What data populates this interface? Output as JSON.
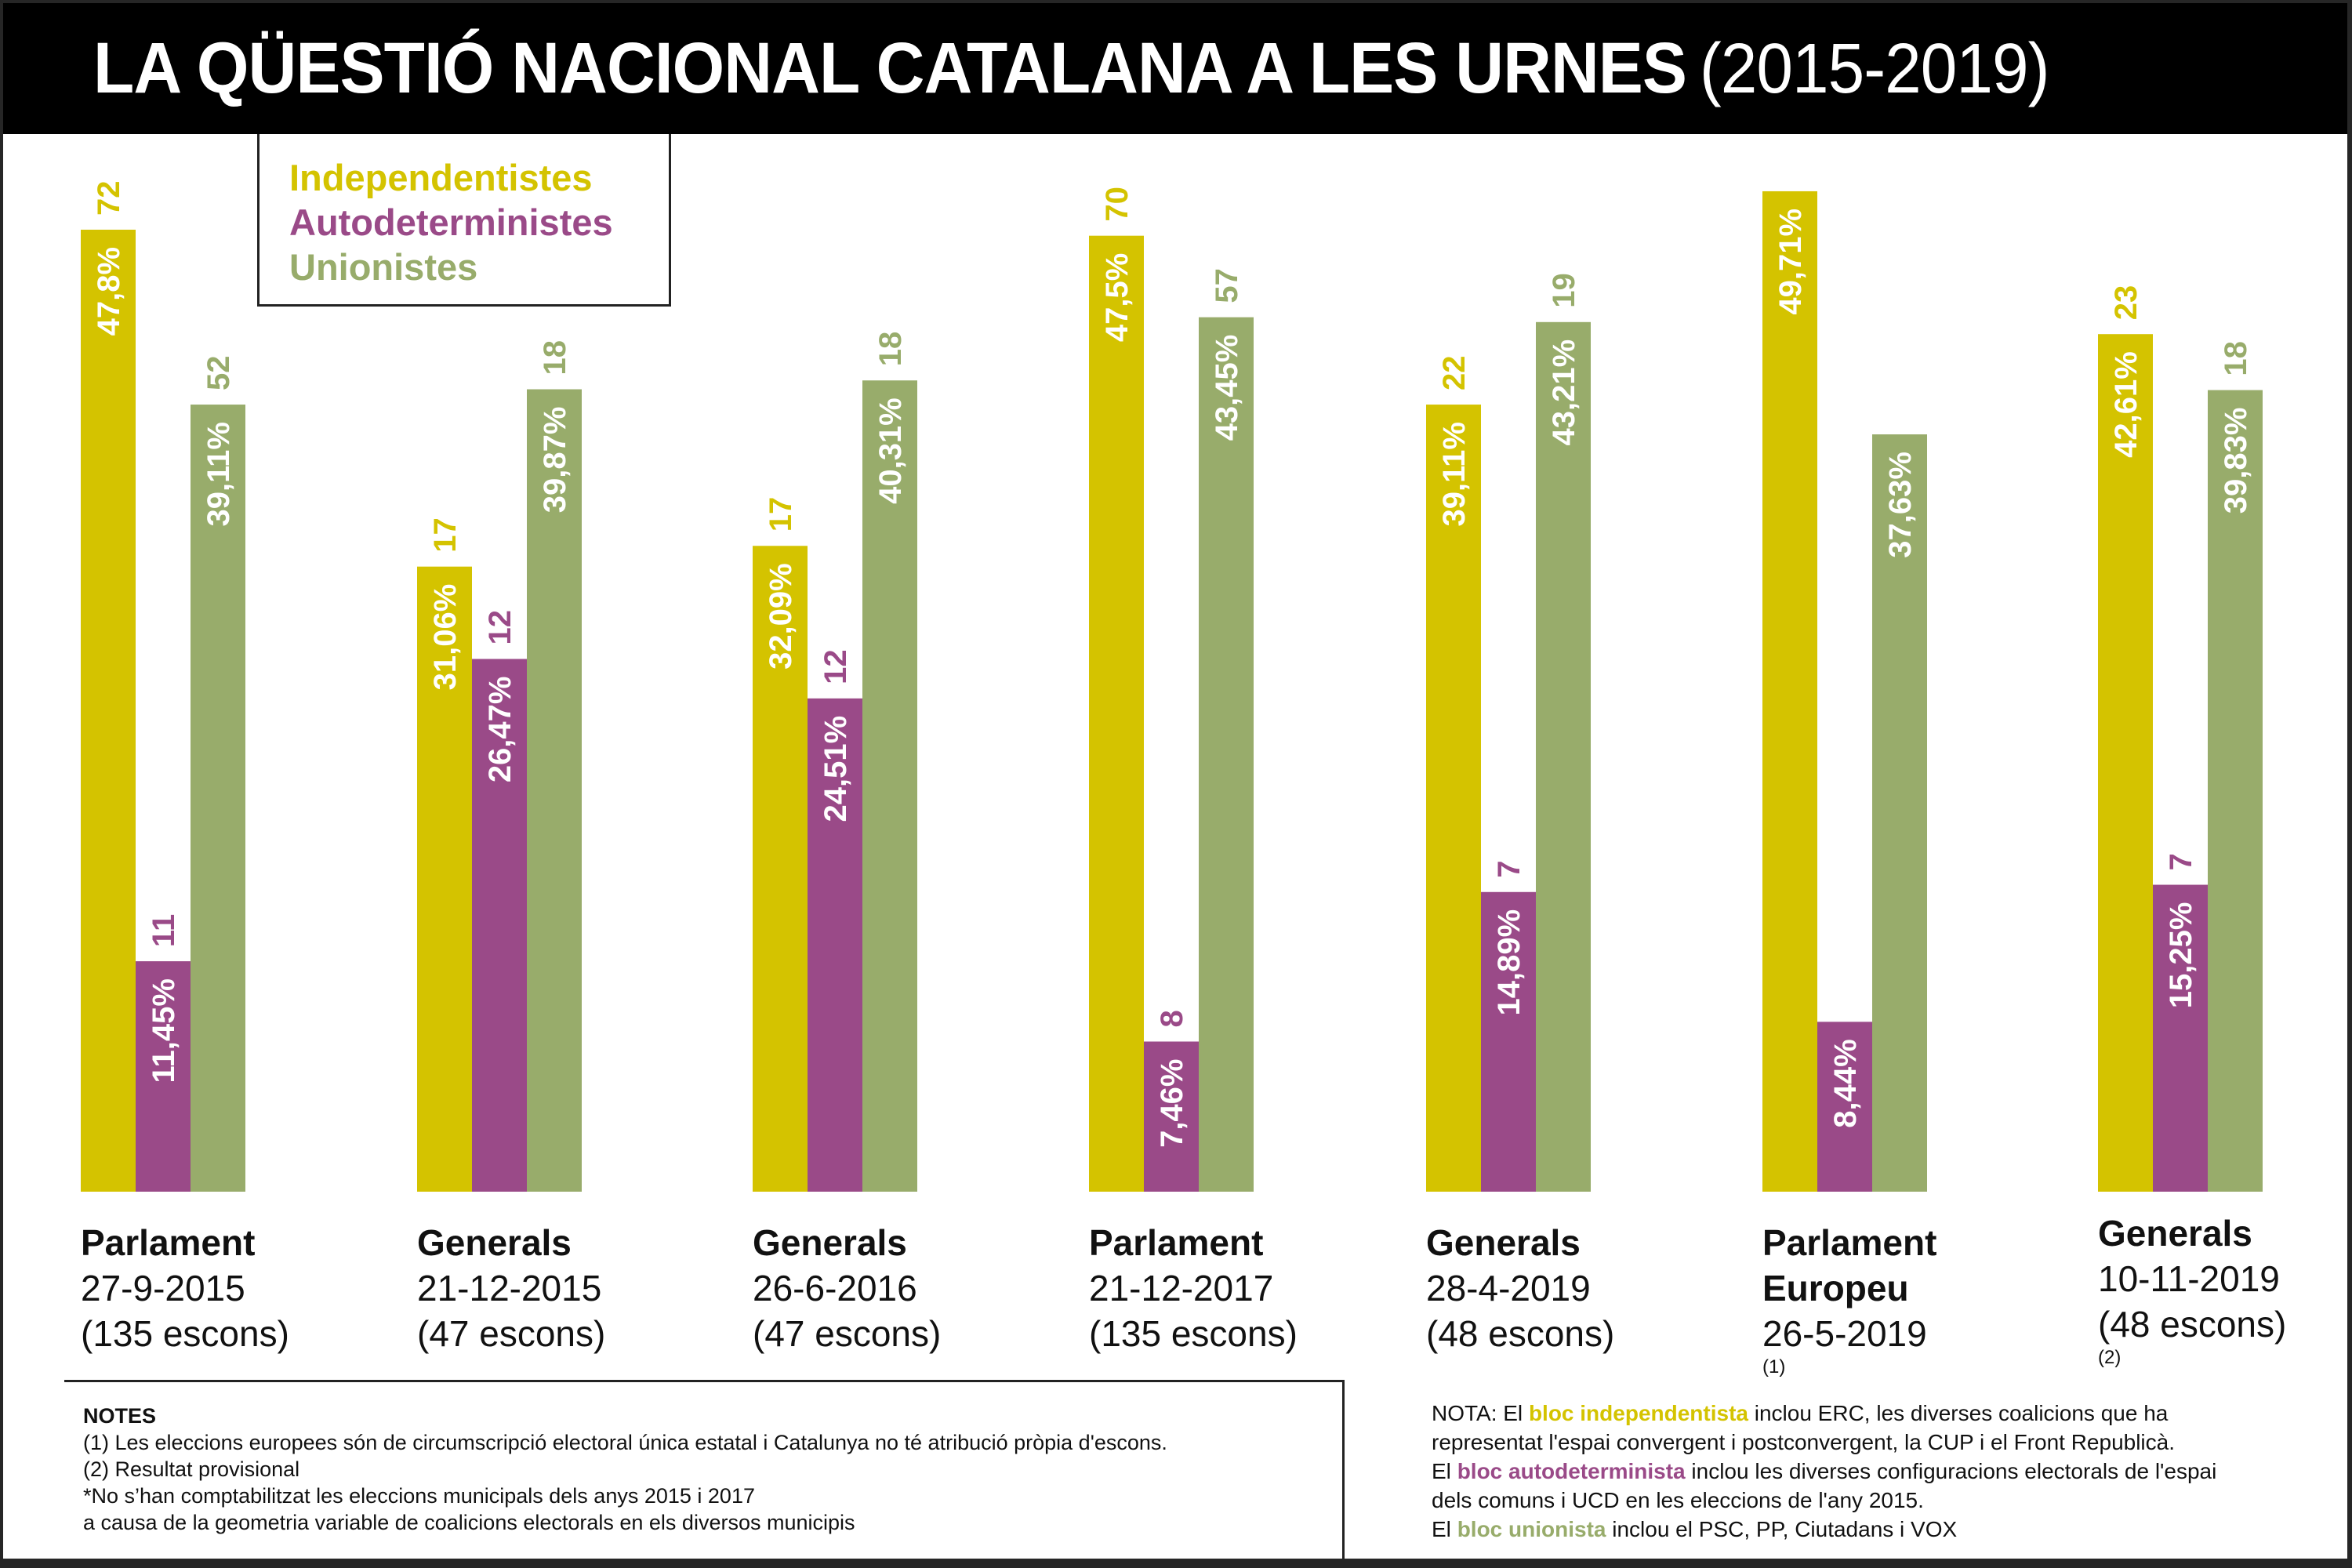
{
  "header": {
    "title": "LA QÜESTIÓ NACIONAL CATALANA A LES URNES",
    "years": "(2015-2019)"
  },
  "colors": {
    "independentistes": "#d4c300",
    "autodeterministes": "#9a4a88",
    "unionistes": "#98ac6b",
    "title_bg": "#000000",
    "frame": "#262626"
  },
  "legend": {
    "items": [
      {
        "label": "Independentistes",
        "color": "#d4c300"
      },
      {
        "label": "Autodeterministes",
        "color": "#9a4a88"
      },
      {
        "label": "Unionistes",
        "color": "#98ac6b"
      }
    ]
  },
  "chart_data": {
    "type": "bar",
    "title": "LA QÜESTIÓ NACIONAL CATALANA A LES URNES (2015-2019)",
    "xlabel": "",
    "ylabel": "",
    "ylim": [
      0,
      55
    ],
    "grid": false,
    "legend_position": "top-left",
    "categories": [
      {
        "type": "Parlament",
        "type_line2": "",
        "date": "27-9-2015",
        "seats": "(135 escons)",
        "footnote": ""
      },
      {
        "type": "Generals",
        "type_line2": "",
        "date": "21-12-2015",
        "seats": "(47 escons)",
        "footnote": ""
      },
      {
        "type": "Generals",
        "type_line2": "",
        "date": "26-6-2016",
        "seats": "(47 escons)",
        "footnote": ""
      },
      {
        "type": "Parlament",
        "type_line2": "",
        "date": "21-12-2017",
        "seats": "(135 escons)",
        "footnote": ""
      },
      {
        "type": "Generals",
        "type_line2": "",
        "date": "28-4-2019",
        "seats": "(48 escons)",
        "footnote": ""
      },
      {
        "type": "Parlament",
        "type_line2": "Europeu",
        "date": "26-5-2019",
        "seats": "",
        "footnote": "(1)"
      },
      {
        "type": "Generals",
        "type_line2": "",
        "date": "10-11-2019",
        "seats": "(48 escons)",
        "footnote": "(2)"
      }
    ],
    "series": [
      {
        "name": "Independentistes",
        "color": "#d4c300",
        "values": [
          47.8,
          31.06,
          32.09,
          47.5,
          39.11,
          49.71,
          42.61
        ],
        "value_labels": [
          "47,8%",
          "31,06%",
          "32,09%",
          "47,5%",
          "39,11%",
          "49,71%",
          "42,61%"
        ],
        "seats": [
          "72",
          "17",
          "17",
          "70",
          "22",
          "",
          "23"
        ]
      },
      {
        "name": "Autodeterministes",
        "color": "#9a4a88",
        "values": [
          11.45,
          26.47,
          24.51,
          7.46,
          14.89,
          8.44,
          15.25
        ],
        "value_labels": [
          "11,45%",
          "26,47%",
          "24,51%",
          "7,46%",
          "14,89%",
          "8,44%",
          "15,25%"
        ],
        "seats": [
          "11",
          "12",
          "12",
          "8",
          "7",
          "",
          "7"
        ]
      },
      {
        "name": "Unionistes",
        "color": "#98ac6b",
        "values": [
          39.11,
          39.87,
          40.31,
          43.45,
          43.21,
          37.63,
          39.83
        ],
        "value_labels": [
          "39,11%",
          "39,87%",
          "40,31%",
          "43,45%",
          "43,21%",
          "37,63%",
          "39,83%"
        ],
        "seats": [
          "52",
          "18",
          "18",
          "57",
          "19",
          "",
          "18"
        ]
      }
    ]
  },
  "notes": {
    "title": "NOTES",
    "lines": [
      "(1) Les eleccions europees són de circumscripció electoral única estatal i Catalunya no té atribució pròpia d'escons.",
      "(2) Resultat provisional",
      "*No s’han comptabilitzat les eleccions municipals dels anys 2015 i 2017",
      "a causa de la geometria variable de coalicions electorals en els diversos municipis"
    ]
  },
  "nota": {
    "l1_pre": "NOTA: El ",
    "l1_hl": "bloc independentista",
    "l1_post": " inclou ERC, les diverses coalicions que ha",
    "l2": "representat l'espai convergent i postconvergent, la CUP i el Front Republicà.",
    "l3_pre": "El ",
    "l3_hl": "bloc autodeterminista",
    "l3_post": " inclou les diverses configuracions electorals de l'espai",
    "l4": "dels comuns i UCD en les eleccions de l'any 2015.",
    "l5_pre": "El ",
    "l5_hl": "bloc unionista",
    "l5_post": " inclou el PSC, PP, Ciutadans i VOX"
  }
}
